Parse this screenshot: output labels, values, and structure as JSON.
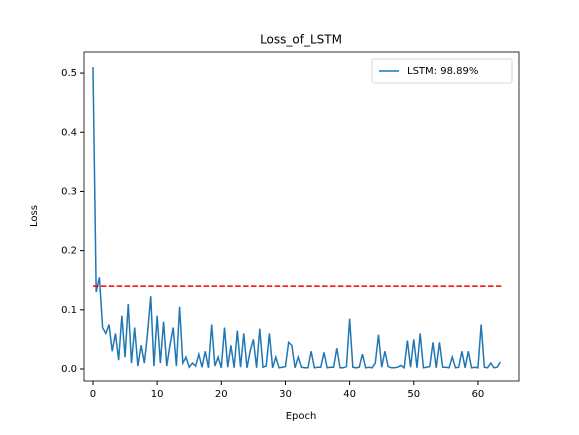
{
  "chart_data": {
    "type": "line",
    "title": "Loss_of_LSTM",
    "xlabel": "Epoch",
    "ylabel": "Loss",
    "xlim": [
      -1.4,
      66.4
    ],
    "ylim": [
      -0.0203,
      0.5356
    ],
    "xticks": [
      0,
      10,
      20,
      30,
      40,
      50,
      60
    ],
    "yticks": [
      {
        "value": 0,
        "label": "0.0"
      },
      0.1,
      0.2,
      0.3,
      0.4,
      0.5
    ],
    "legend": "upper right",
    "series": [
      {
        "name": "LSTM: 98.89%",
        "color": "#1f77b4",
        "x": [
          0,
          0.5,
          1,
          1.5,
          2,
          2.5,
          3,
          3.5,
          4,
          4.5,
          5,
          5.5,
          6,
          6.5,
          7,
          7.5,
          8,
          8.5,
          9,
          9.5,
          10,
          10.5,
          11,
          11.5,
          12,
          12.5,
          13,
          13.5,
          14,
          14.5,
          15,
          15.5,
          16,
          16.5,
          17,
          17.5,
          18,
          18.5,
          19,
          19.5,
          20,
          20.5,
          21,
          21.5,
          22,
          22.5,
          23,
          23.5,
          24,
          24.5,
          25,
          25.5,
          26,
          26.5,
          27,
          27.5,
          28,
          28.5,
          29,
          29.5,
          30,
          30.5,
          31,
          31.5,
          32,
          32.5,
          33,
          33.5,
          34,
          34.5,
          35,
          35.5,
          36,
          36.5,
          37,
          37.5,
          38,
          38.5,
          39,
          39.5,
          40,
          40.5,
          41,
          41.5,
          42,
          42.5,
          43,
          43.5,
          44,
          44.5,
          45,
          45.5,
          46,
          46.5,
          47,
          47.5,
          48,
          48.5,
          49,
          49.5,
          50,
          50.5,
          51,
          51.5,
          52,
          52.5,
          53,
          53.5,
          54,
          54.5,
          55,
          55.5,
          56,
          56.5,
          57,
          57.5,
          58,
          58.5,
          59,
          59.5,
          60,
          60.5,
          61,
          61.5,
          62,
          62.5,
          63,
          63.5
        ],
        "values": [
          0.51,
          0.13,
          0.155,
          0.07,
          0.06,
          0.075,
          0.03,
          0.06,
          0.015,
          0.09,
          0.02,
          0.11,
          0.01,
          0.07,
          0.005,
          0.04,
          0.01,
          0.06,
          0.123,
          0.005,
          0.09,
          0.01,
          0.08,
          0.005,
          0.04,
          0.07,
          0.005,
          0.105,
          0.01,
          0.02,
          0.003,
          0.01,
          0.005,
          0.025,
          0.003,
          0.03,
          0.002,
          0.075,
          0.005,
          0.02,
          0.002,
          0.07,
          0.003,
          0.04,
          0.002,
          0.065,
          0.003,
          0.06,
          0.002,
          0.03,
          0.05,
          0.002,
          0.068,
          0.003,
          0.005,
          0.06,
          0.002,
          0.02,
          0.002,
          0.003,
          0.004,
          0.045,
          0.04,
          0.002,
          0.02,
          0.003,
          0.002,
          0.002,
          0.03,
          0.002,
          0.003,
          0.003,
          0.028,
          0.002,
          0.003,
          0.003,
          0.035,
          0.002,
          0.002,
          0.004,
          0.085,
          0.003,
          0.002,
          0.003,
          0.025,
          0.002,
          0.003,
          0.002,
          0.01,
          0.058,
          0.003,
          0.03,
          0.004,
          0.002,
          0.002,
          0.003,
          0.006,
          0.002,
          0.048,
          0.003,
          0.05,
          0.002,
          0.06,
          0.002,
          0.003,
          0.004,
          0.045,
          0.002,
          0.045,
          0.003,
          0.003,
          0.002,
          0.02,
          0.002,
          0.003,
          0.03,
          0.002,
          0.03,
          0.002,
          0.003,
          0.002,
          0.075,
          0.003,
          0.002,
          0.01,
          0.002,
          0.003,
          0.012
        ]
      }
    ],
    "reference_line": {
      "y": 0.14,
      "x": [
        0,
        64
      ],
      "color": "#ff0000"
    }
  }
}
